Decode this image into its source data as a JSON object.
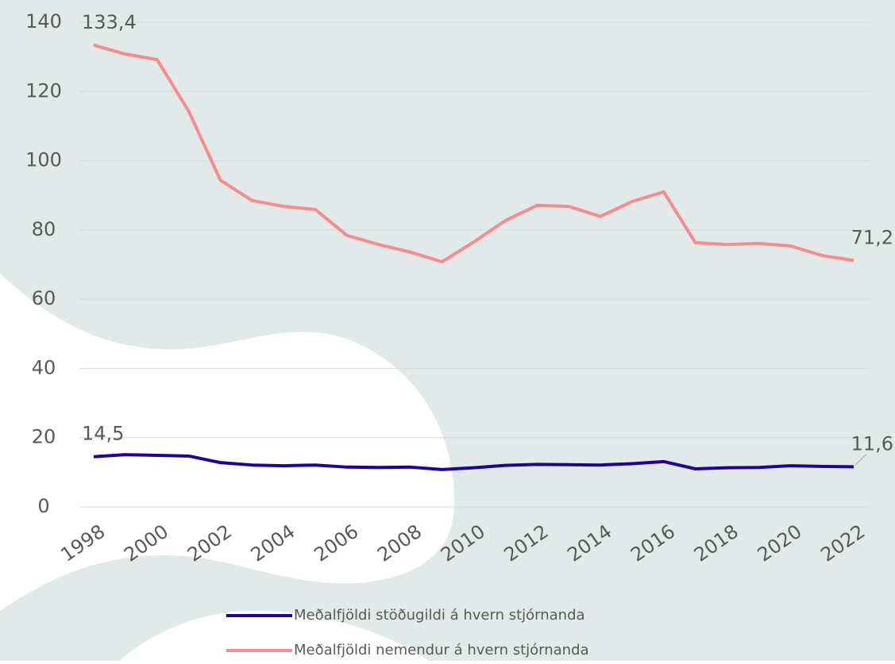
{
  "chart_data": {
    "type": "line",
    "x": [
      1998,
      1999,
      2000,
      2001,
      2002,
      2003,
      2004,
      2005,
      2006,
      2007,
      2008,
      2009,
      2010,
      2011,
      2012,
      2013,
      2014,
      2015,
      2016,
      2017,
      2018,
      2019,
      2020,
      2021,
      2022
    ],
    "xlim": [
      1998,
      2022
    ],
    "xticks": [
      1998,
      2000,
      2002,
      2004,
      2006,
      2008,
      2010,
      2012,
      2014,
      2016,
      2018,
      2020,
      2022
    ],
    "ylim": [
      0,
      140
    ],
    "yticks": [
      0,
      20,
      40,
      60,
      80,
      100,
      120,
      140
    ],
    "grid": true,
    "legend": "bottom",
    "series": [
      {
        "name": "Meðalfjöldi stöðugildi á hvern stjórnanda",
        "color": "#22009c",
        "values": [
          14.5,
          15.1,
          14.9,
          14.7,
          12.8,
          12.1,
          11.9,
          12.1,
          11.5,
          11.4,
          11.5,
          10.8,
          11.3,
          12.0,
          12.3,
          12.2,
          12.1,
          12.5,
          13.1,
          11.0,
          11.3,
          11.4,
          11.9,
          11.7,
          11.6
        ],
        "value_labels": [
          "14,5",
          null,
          null,
          null,
          null,
          null,
          null,
          null,
          null,
          null,
          null,
          null,
          null,
          null,
          null,
          null,
          null,
          null,
          null,
          null,
          null,
          null,
          null,
          null,
          "11,6"
        ]
      },
      {
        "name": "Meðalfjöldi nemendur á hvern stjórnanda",
        "color": "#f98b8b",
        "values": [
          133.4,
          130.8,
          129.2,
          114.3,
          94.4,
          88.5,
          86.8,
          85.9,
          78.4,
          75.8,
          73.6,
          70.8,
          76.5,
          82.7,
          87.1,
          86.8,
          83.9,
          88.2,
          91.0,
          76.3,
          75.8,
          76.1,
          75.4,
          72.6,
          71.2
        ],
        "value_labels": [
          "133,4",
          null,
          null,
          null,
          null,
          null,
          null,
          null,
          null,
          null,
          null,
          null,
          null,
          null,
          null,
          null,
          null,
          null,
          null,
          null,
          null,
          null,
          null,
          null,
          "71,2"
        ]
      }
    ]
  }
}
